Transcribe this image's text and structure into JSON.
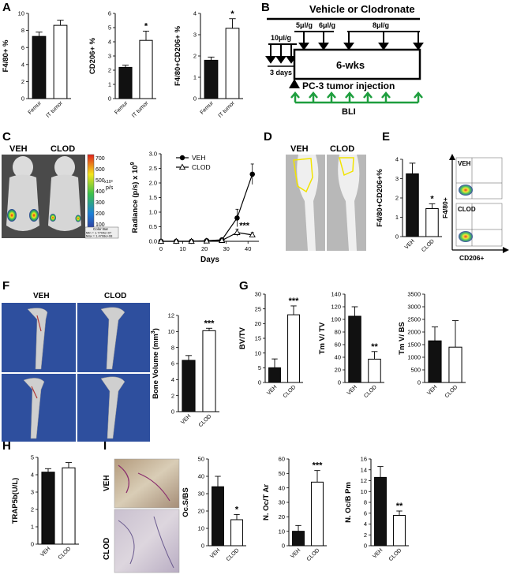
{
  "panels": {
    "A": "A",
    "B": "B",
    "C": "C",
    "D": "D",
    "E": "E",
    "F": "F",
    "G": "G",
    "H": "H",
    "I": "I"
  },
  "chart_data": [
    {
      "id": "A1",
      "type": "bar",
      "categories": [
        "Femur",
        "IT tumor"
      ],
      "values": [
        7.3,
        8.6
      ],
      "errors": [
        0.5,
        0.6
      ],
      "ylabel": "F4/80+ %",
      "ylim": [
        0,
        10
      ],
      "yticks": [
        0,
        2,
        4,
        6,
        8,
        10
      ],
      "significance": [
        "",
        ""
      ]
    },
    {
      "id": "A2",
      "type": "bar",
      "categories": [
        "Femur",
        "IT tumor"
      ],
      "values": [
        2.2,
        4.1
      ],
      "errors": [
        0.15,
        0.65
      ],
      "ylabel": "CD206+ %",
      "ylim": [
        0,
        6
      ],
      "yticks": [
        0,
        1,
        2,
        3,
        4,
        5,
        6
      ],
      "significance": [
        "",
        "*"
      ]
    },
    {
      "id": "A3",
      "type": "bar",
      "categories": [
        "Femur",
        "IT tumor"
      ],
      "values": [
        1.8,
        3.3
      ],
      "errors": [
        0.15,
        0.45
      ],
      "ylabel": "F4/80+CD206+ %",
      "ylim": [
        0,
        4
      ],
      "yticks": [
        0,
        1,
        2,
        3,
        4
      ],
      "significance": [
        "",
        "*"
      ]
    },
    {
      "id": "C",
      "type": "line",
      "x": [
        0,
        7,
        14,
        21,
        28,
        35,
        42
      ],
      "xlabel": "Days",
      "ylabel": "Radiance (p/s) x 10",
      "ylabel_sup": "9",
      "ylim": [
        0,
        3
      ],
      "yticks": [
        "0.0",
        "0.5",
        "1.0",
        "1.5",
        "2.0",
        "2.5",
        "3.0"
      ],
      "xticks": [
        0,
        10,
        20,
        30,
        40
      ],
      "series": [
        {
          "name": "VEH",
          "values": [
            0,
            0,
            0,
            0.02,
            0.05,
            0.8,
            2.3
          ],
          "errors": [
            0,
            0,
            0,
            0.03,
            0.05,
            0.3,
            0.35
          ]
        },
        {
          "name": "CLOD",
          "values": [
            0,
            0,
            0,
            0.01,
            0.03,
            0.3,
            0.22
          ],
          "errors": [
            0,
            0,
            0,
            0.02,
            0.03,
            0.12,
            0.08
          ]
        }
      ],
      "annotation": "***"
    },
    {
      "id": "E",
      "type": "bar",
      "categories": [
        "VEH",
        "CLOD"
      ],
      "values": [
        3.25,
        1.45
      ],
      "errors": [
        0.55,
        0.25
      ],
      "ylabel": "F4/80+CD206+%",
      "ylim": [
        0,
        4
      ],
      "yticks": [
        0,
        1,
        2,
        3,
        4
      ],
      "significance": [
        "",
        "*"
      ]
    },
    {
      "id": "F",
      "type": "bar",
      "categories": [
        "VEH",
        "CLOD"
      ],
      "values": [
        6.4,
        10.1
      ],
      "errors": [
        0.6,
        0.3
      ],
      "ylabel": "Bone Volume (mm",
      "ylabel_sup": "3",
      "ylabel_tail": ")",
      "ylim": [
        0,
        12
      ],
      "yticks": [
        0,
        2,
        4,
        6,
        8,
        10,
        12
      ],
      "significance": [
        "",
        "***"
      ]
    },
    {
      "id": "G1",
      "type": "bar",
      "categories": [
        "VEH",
        "CLOD"
      ],
      "values": [
        5,
        23
      ],
      "errors": [
        3,
        3
      ],
      "ylabel": "BV/TV",
      "ylim": [
        0,
        30
      ],
      "yticks": [
        0,
        5,
        10,
        15,
        20,
        25,
        30
      ],
      "significance": [
        "",
        "***"
      ]
    },
    {
      "id": "G2",
      "type": "bar",
      "categories": [
        "VEH",
        "CLOD"
      ],
      "values": [
        105,
        37
      ],
      "errors": [
        15,
        12
      ],
      "ylabel": "Tm V/ TV",
      "ylim": [
        0,
        140
      ],
      "yticks": [
        0,
        20,
        40,
        60,
        80,
        100,
        120,
        140
      ],
      "significance": [
        "",
        "**"
      ]
    },
    {
      "id": "G3",
      "type": "bar",
      "categories": [
        "VEH",
        "CLOD"
      ],
      "values": [
        1650,
        1400
      ],
      "errors": [
        550,
        1050
      ],
      "ylabel": "Tm V/ BS",
      "ylim": [
        0,
        3500
      ],
      "yticks": [
        0,
        500,
        1000,
        1500,
        2000,
        2500,
        3000,
        3500
      ],
      "significance": [
        "",
        ""
      ]
    },
    {
      "id": "H",
      "type": "bar",
      "categories": [
        "VEH",
        "CLOD"
      ],
      "values": [
        4.15,
        4.4
      ],
      "errors": [
        0.2,
        0.3
      ],
      "ylabel": "TRAP5b(U/L)",
      "ylim": [
        0,
        5
      ],
      "yticks": [
        0,
        1,
        2,
        3,
        4,
        5
      ],
      "significance": [
        "",
        ""
      ]
    },
    {
      "id": "I1",
      "type": "bar",
      "categories": [
        "VEH",
        "CLOD"
      ],
      "values": [
        34,
        15
      ],
      "errors": [
        6,
        3
      ],
      "ylabel": "Oc.S/BS",
      "ylim": [
        0,
        50
      ],
      "yticks": [
        0,
        10,
        20,
        30,
        40,
        50
      ],
      "significance": [
        "",
        "*"
      ]
    },
    {
      "id": "I2",
      "type": "bar",
      "categories": [
        "VEH",
        "CLOD"
      ],
      "values": [
        10,
        44
      ],
      "errors": [
        4,
        8
      ],
      "ylabel": "N. Oc/T Ar",
      "ylim": [
        0,
        60
      ],
      "yticks": [
        0,
        10,
        20,
        30,
        40,
        50,
        60
      ],
      "significance": [
        "",
        "***"
      ]
    },
    {
      "id": "I3",
      "type": "bar",
      "categories": [
        "VEH",
        "CLOD"
      ],
      "values": [
        12.6,
        5.6
      ],
      "errors": [
        2,
        0.8
      ],
      "ylabel": "N. Oc/B Pm",
      "ylim": [
        0,
        16
      ],
      "yticks": [
        0,
        2,
        4,
        6,
        8,
        10,
        12,
        14,
        16
      ],
      "significance": [
        "",
        "**"
      ]
    }
  ],
  "schematic": {
    "title": "Vehicle or Clodronate",
    "dose1": "10μl/g",
    "dose2": "5μl/g",
    "dose3": "6μl/g",
    "dose4": "8μl/g",
    "duration": "6-wks",
    "days": "3 days",
    "injection": "PC-3 tumor injection",
    "bli": "BLI"
  },
  "imaging": {
    "veh": "VEH",
    "clod": "CLOD",
    "colorbar_title": "Color Bar",
    "colorbar_min": "Min = 1.7704e+07",
    "colorbar_max": "Max = 1.4708e+08",
    "colorbar_ticks": [
      "700",
      "600",
      "500",
      "400",
      "300",
      "200",
      "100"
    ],
    "colorbar_unit": "p/s",
    "colorbar_exp": "x10⁶",
    "flow_y": "F4/80+",
    "flow_x": "CD206+"
  },
  "colors": {
    "black_bar": "#111111",
    "white_bar": "#ffffff",
    "schematic_green": "#1e9e3e",
    "photo_blue": "#2e4f9e"
  }
}
